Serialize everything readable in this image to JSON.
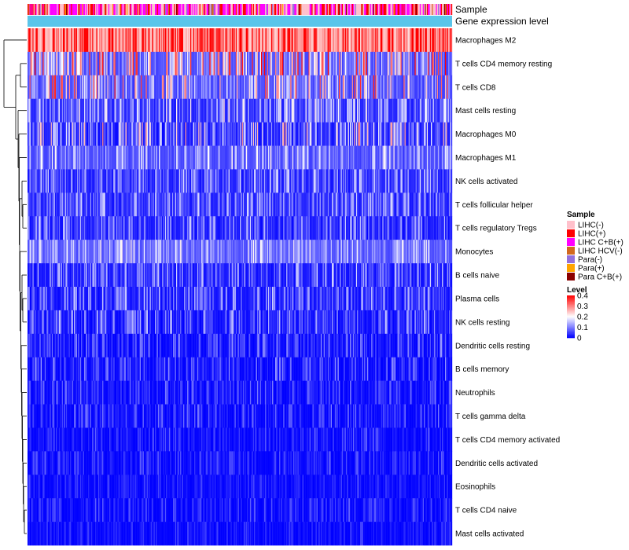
{
  "chart_data": {
    "type": "heatmap",
    "title": "",
    "annotation_tracks": [
      "Sample",
      "Gene expression level"
    ],
    "rows": [
      {
        "label": "Macrophages M2",
        "mean": 0.29,
        "spread": 0.09
      },
      {
        "label": "T cells CD4 memory resting",
        "mean": 0.1,
        "spread": 0.09
      },
      {
        "label": "T cells CD8",
        "mean": 0.09,
        "spread": 0.08
      },
      {
        "label": "Mast cells resting",
        "mean": 0.05,
        "spread": 0.05
      },
      {
        "label": "Macrophages M0",
        "mean": 0.05,
        "spread": 0.07
      },
      {
        "label": "Macrophages M1",
        "mean": 0.07,
        "spread": 0.04
      },
      {
        "label": "NK cells activated",
        "mean": 0.04,
        "spread": 0.04
      },
      {
        "label": "T cells follicular helper",
        "mean": 0.04,
        "spread": 0.04
      },
      {
        "label": "T cells regulatory  Tregs",
        "mean": 0.03,
        "spread": 0.04
      },
      {
        "label": "Monocytes",
        "mean": 0.08,
        "spread": 0.04
      },
      {
        "label": "B cells naive",
        "mean": 0.03,
        "spread": 0.04
      },
      {
        "label": "Plasma cells",
        "mean": 0.03,
        "spread": 0.04
      },
      {
        "label": "NK cells resting",
        "mean": 0.025,
        "spread": 0.04
      },
      {
        "label": "Dendritic cells resting",
        "mean": 0.015,
        "spread": 0.03
      },
      {
        "label": "B cells memory",
        "mean": 0.015,
        "spread": 0.03
      },
      {
        "label": "Neutrophils",
        "mean": 0.012,
        "spread": 0.025
      },
      {
        "label": "T cells gamma delta",
        "mean": 0.01,
        "spread": 0.025
      },
      {
        "label": "T cells CD4 memory activated",
        "mean": 0.008,
        "spread": 0.02
      },
      {
        "label": "Dendritic cells activated",
        "mean": 0.006,
        "spread": 0.02
      },
      {
        "label": "Eosinophils",
        "mean": 0.005,
        "spread": 0.015
      },
      {
        "label": "T cells CD4 naive",
        "mean": 0.005,
        "spread": 0.02
      },
      {
        "label": "Mast cells activated",
        "mean": 0.004,
        "spread": 0.015
      }
    ],
    "columns_count": 420,
    "sample_legend": {
      "title": "Sample",
      "entries": [
        {
          "label": "LIHC(-)",
          "color": "#ffc0cb"
        },
        {
          "label": "LIHC(+)",
          "color": "#ff0000"
        },
        {
          "label": "LIHC C+B(+)",
          "color": "#ff00ff"
        },
        {
          "label": "LIHC HCV(-)",
          "color": "#d2691e"
        },
        {
          "label": "Para(-)",
          "color": "#9370db"
        },
        {
          "label": "Para(+)",
          "color": "#ffa500"
        },
        {
          "label": "Para C+B(+)",
          "color": "#8b0000"
        }
      ]
    },
    "level_legend": {
      "title": "Level",
      "ticks": [
        "0.4",
        "0.3",
        "0.2",
        "0.1",
        "0"
      ],
      "range": [
        0,
        0.4
      ],
      "colors": [
        "#0000ff",
        "#ffffff",
        "#ff0000"
      ]
    },
    "gene_expression_color": "#5bc5ea"
  }
}
